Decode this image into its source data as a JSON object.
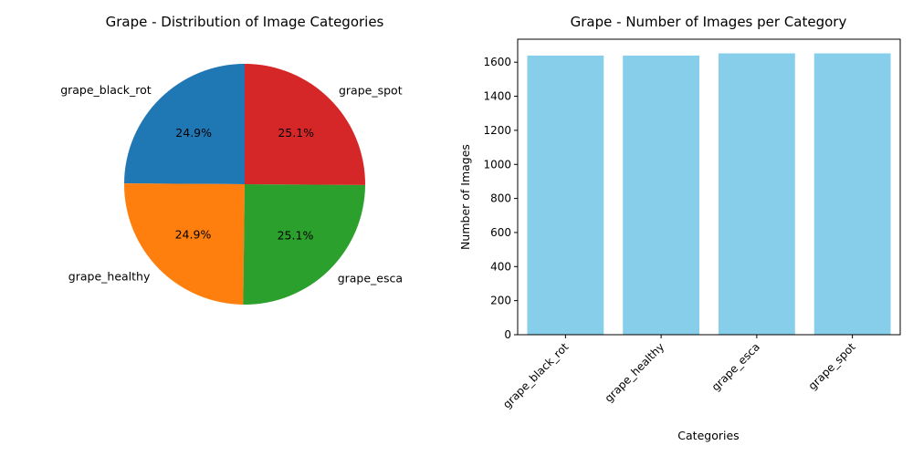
{
  "chart_data": [
    {
      "type": "pie",
      "title": "Grape - Distribution of Image Categories",
      "categories": [
        "grape_black_rot",
        "grape_healthy",
        "grape_esca",
        "grape_spot"
      ],
      "values": [
        1639,
        1639,
        1652,
        1652
      ],
      "percent_labels": [
        "24.9%",
        "24.9%",
        "25.1%",
        "25.1%"
      ],
      "colors": [
        "#1f77b4",
        "#ff7f0e",
        "#2ca02c",
        "#d62728"
      ],
      "start_angle_deg": 90,
      "direction": "counterclockwise"
    },
    {
      "type": "bar",
      "title": "Grape - Number of Images per Category",
      "categories": [
        "grape_black_rot",
        "grape_healthy",
        "grape_esca",
        "grape_spot"
      ],
      "values": [
        1639,
        1639,
        1652,
        1652
      ],
      "xlabel": "Categories",
      "ylabel": "Number of Images",
      "ylim": [
        0,
        1735
      ],
      "yticks": [
        0,
        200,
        400,
        600,
        800,
        1000,
        1200,
        1400,
        1600
      ],
      "bar_color": "#87ceeb",
      "grid": false,
      "xtick_rotation_deg": 45
    }
  ]
}
